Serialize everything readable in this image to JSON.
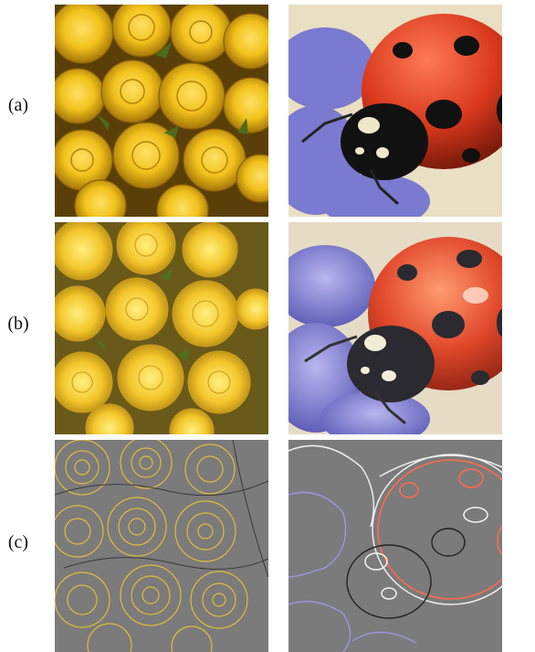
{
  "figure": {
    "rows": [
      {
        "label": "(a)"
      },
      {
        "label": "(b)"
      },
      {
        "label": "(c)"
      }
    ]
  },
  "colors": {
    "rose_yellow": "#f2c21b",
    "rose_shadow": "#9a6d08",
    "ladybug_red": "#d8381c",
    "ladybug_black": "#141414",
    "grape_violet": "#7a7ad0",
    "edge_gray": "#7b7b7b",
    "background": "#e9dfc3"
  }
}
